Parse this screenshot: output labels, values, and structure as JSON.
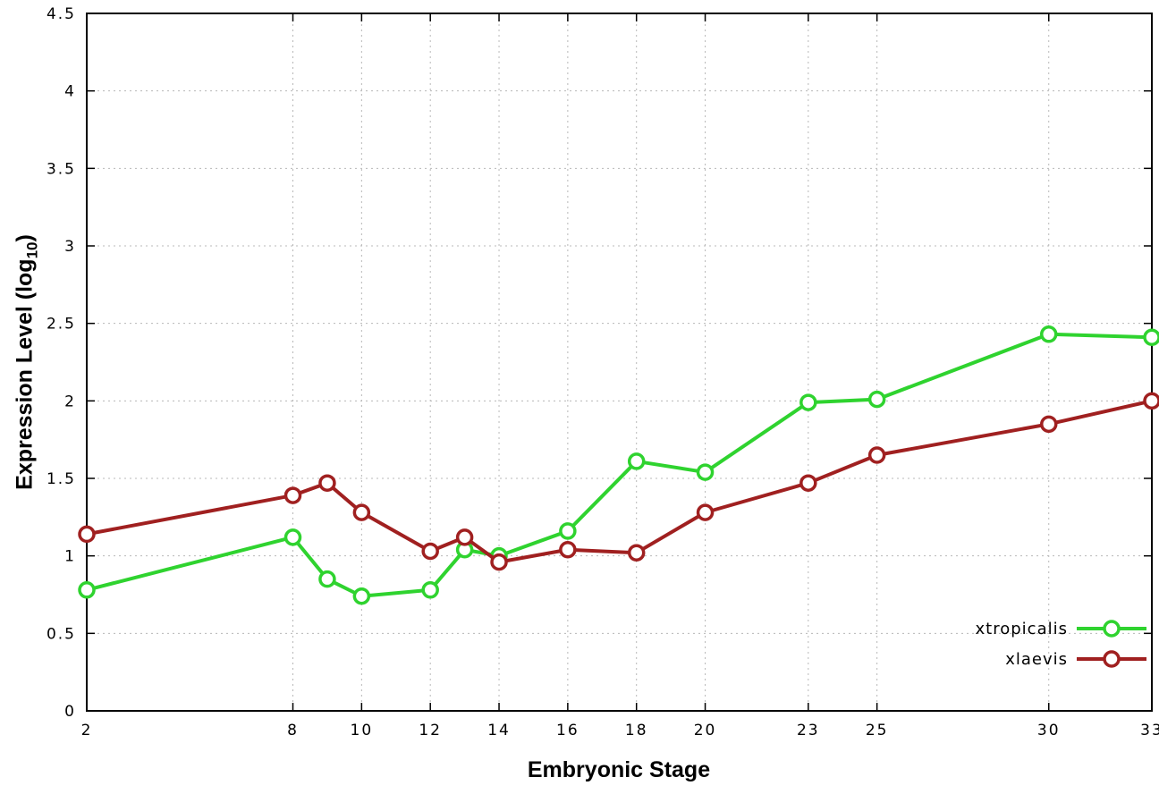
{
  "chart_data": {
    "type": "line",
    "title": "",
    "xlabel": "Embryonic Stage",
    "ylabel": "Expression Level (log10)",
    "ylabel_prefix": "Expression Level (log",
    "ylabel_sub": "10",
    "ylabel_suffix": ")",
    "x": [
      2,
      8,
      9,
      10,
      12,
      13,
      14,
      16,
      18,
      20,
      23,
      25,
      30,
      33
    ],
    "xlim": [
      2,
      33
    ],
    "ylim": [
      0,
      4.5
    ],
    "x_ticks": [
      2,
      8,
      10,
      12,
      14,
      16,
      18,
      20,
      23,
      25,
      30,
      33
    ],
    "y_ticks": [
      0,
      0.5,
      1,
      1.5,
      2,
      2.5,
      3,
      3.5,
      4,
      4.5
    ],
    "grid": true,
    "legend_position": "bottom-right",
    "series": [
      {
        "name": "xtropicalis",
        "color": "#2fd32f",
        "values": [
          0.78,
          1.12,
          0.85,
          0.74,
          0.78,
          1.04,
          1.0,
          1.16,
          1.61,
          1.54,
          1.99,
          2.01,
          2.43,
          2.41
        ]
      },
      {
        "name": "xlaevis",
        "color": "#a02020",
        "values": [
          1.14,
          1.39,
          1.47,
          1.28,
          1.03,
          1.12,
          0.96,
          1.04,
          1.02,
          1.28,
          1.47,
          1.65,
          1.85,
          2.0
        ]
      }
    ],
    "style": {
      "grid_color": "#b8b8b8",
      "border_color": "#000000",
      "line_width": 4,
      "marker_radius": 8,
      "marker_stroke": 3.5
    }
  }
}
